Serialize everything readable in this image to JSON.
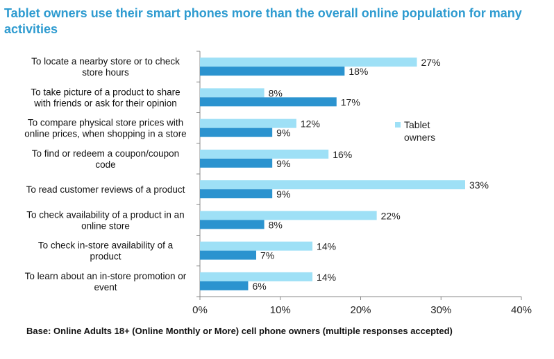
{
  "title": "Tablet owners use their smart phones more than the overall online population for many activities",
  "footnote": "Base: Online Adults 18+ (Online Monthly or More) cell phone owners (multiple responses accepted)",
  "colors": {
    "tablet": "#9ee0f6",
    "overall": "#2b93cf",
    "title": "#2e9bd0",
    "axis": "#888888"
  },
  "chart_data": {
    "type": "bar",
    "orientation": "horizontal",
    "categories": [
      [
        "To locate a nearby store or  to check",
        "store hours"
      ],
      [
        "To take picture of a product to share",
        "with friends or ask for their opinion"
      ],
      [
        "To compare physical store prices with",
        "online prices, when shopping in a store"
      ],
      [
        "To find or redeem a coupon/coupon",
        "code"
      ],
      [
        "To read customer reviews of a product"
      ],
      [
        "To check availability of a product in an",
        "online store"
      ],
      [
        "To check in-store availability of a",
        "product"
      ],
      [
        "To learn about an in-store promotion or",
        "event"
      ]
    ],
    "series": [
      {
        "name": "Tablet owners",
        "legend_lines": [
          "Tablet",
          "owners"
        ],
        "values": [
          27,
          8,
          12,
          16,
          33,
          22,
          14,
          14
        ],
        "labels": [
          "27%",
          "8%",
          "12%",
          "16%",
          "33%",
          "22%",
          "14%",
          "14%"
        ]
      },
      {
        "values": [
          18,
          17,
          9,
          9,
          9,
          8,
          7,
          6
        ],
        "labels": [
          "18%",
          "17%",
          "9%",
          "9%",
          "9%",
          "8%",
          "7%",
          "6%"
        ]
      }
    ],
    "xlim": [
      0,
      40
    ],
    "xticks": [
      0,
      10,
      20,
      30,
      40
    ],
    "xtick_labels": [
      "0%",
      "10%",
      "20%",
      "30%",
      "40%"
    ],
    "grid": false,
    "legend_position": "right"
  }
}
